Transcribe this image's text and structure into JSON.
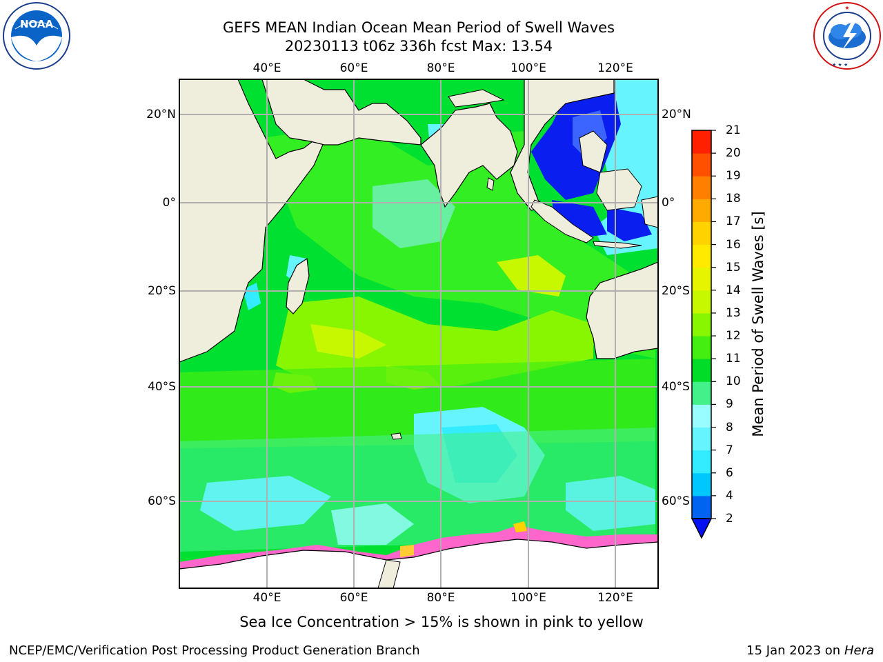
{
  "title": {
    "line1": "GEFS MEAN Indian Ocean Mean Period of Swell Waves",
    "line2": "20230113 t06z 336h fcst   Max: 13.54"
  },
  "logos": {
    "left": {
      "icon": "noaa-logo",
      "text": "NOAA",
      "ring_text": "NATIONAL OCEANIC AND ATMOSPHERIC ADMINISTRATION · U.S. DEPARTMENT OF COMMERCE"
    },
    "right": {
      "icon": "nws-logo",
      "ring_text": "NATIONAL WEATHER SERVICE"
    }
  },
  "map": {
    "lon_ticks": [
      "40°E",
      "60°E",
      "80°E",
      "100°E",
      "120°E"
    ],
    "lat_ticks": [
      "20°N",
      "0°",
      "20°S",
      "40°S",
      "60°S"
    ],
    "colors": {
      "land": "#efeedd",
      "ice_shelf": "#ffffff",
      "grid": "#b0b0b0",
      "sea_ice": "#ff66cc"
    }
  },
  "colorbar": {
    "label": "Mean Period of Swell Waves [s]",
    "ticks": [
      "2",
      "4",
      "6",
      "7",
      "8",
      "9",
      "10",
      "11",
      "12",
      "13",
      "14",
      "15",
      "16",
      "17",
      "18",
      "19",
      "20",
      "21"
    ],
    "colors": [
      "#0064f0",
      "#00c8ff",
      "#33ecff",
      "#66f4ff",
      "#99fcff",
      "#44f08a",
      "#00dc28",
      "#44ee11",
      "#88f600",
      "#c8f800",
      "#e6f400",
      "#ffea00",
      "#ffd200",
      "#ffaa00",
      "#ff8000",
      "#ff5000",
      "#ff2000",
      "#ff0000"
    ],
    "under_color": "#0010f0"
  },
  "caption": "Sea Ice Concentration > 15% is shown in pink to yellow",
  "footer": {
    "left": "NCEP/EMC/Verification Post Processing Product Generation Branch",
    "right_date": "15 Jan 2023 on",
    "right_machine": "Hera"
  }
}
